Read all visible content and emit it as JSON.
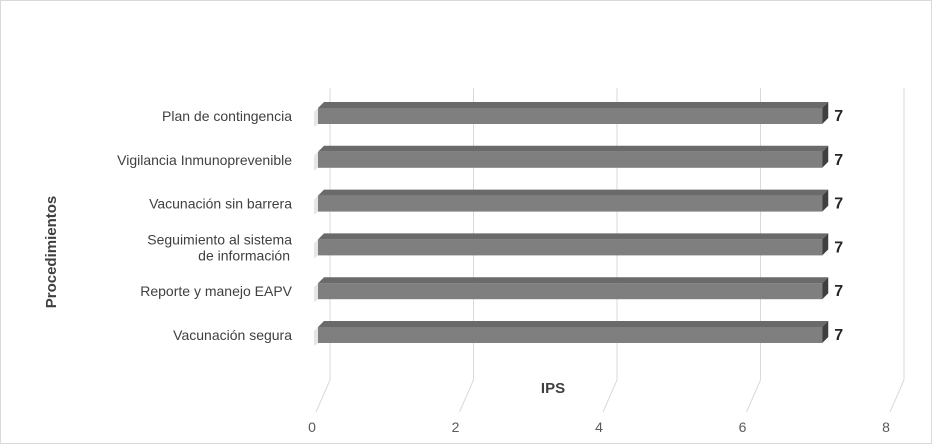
{
  "chart_data": {
    "type": "bar",
    "orientation": "horizontal",
    "style": "3d",
    "categories": [
      [
        "Plan de contingencia"
      ],
      [
        "Vigilancia Inmunoprevenible"
      ],
      [
        "Vacunación sin barrera"
      ],
      [
        "Seguimiento al sistema",
        "de información"
      ],
      [
        "Reporte y manejo EAPV"
      ],
      [
        "Vacunación segura"
      ]
    ],
    "values": [
      7,
      7,
      7,
      7,
      7,
      7
    ],
    "data_labels": [
      "7",
      "7",
      "7",
      "7",
      "7",
      "7"
    ],
    "title": "",
    "xlabel": "IPS",
    "ylabel": "Procedimientos",
    "xlim": [
      0,
      8
    ],
    "xticks": [
      "0",
      "2",
      "4",
      "6",
      "8"
    ],
    "grid": true,
    "colors": {
      "bar": "#7f7f7f",
      "bar_top": "#6a6a6a",
      "bar_side": "#3f3f3f",
      "grid": "#d9d9d9"
    }
  }
}
